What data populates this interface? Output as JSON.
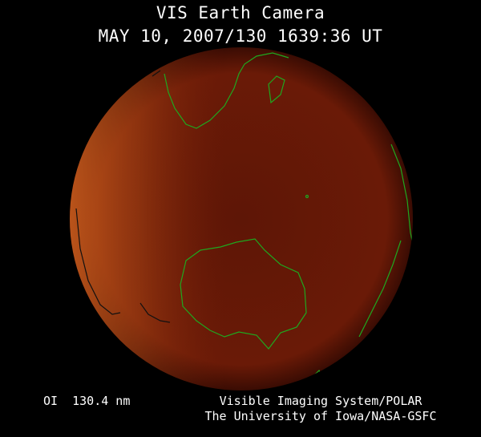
{
  "header": {
    "title": "VIS Earth Camera",
    "timestamp": "MAY 10, 2007/130 1639:36 UT"
  },
  "footer": {
    "band": "OI  130.4 nm",
    "instrument": "Visible Imaging System/POLAR",
    "credit": "The University of Iowa/NASA-GSFC"
  },
  "colors": {
    "background": "#000000",
    "disk_dark": "#5a1405",
    "disk_bright": "#c0541c",
    "coastline": "#1fa81f",
    "night_coastline": "#111111"
  }
}
